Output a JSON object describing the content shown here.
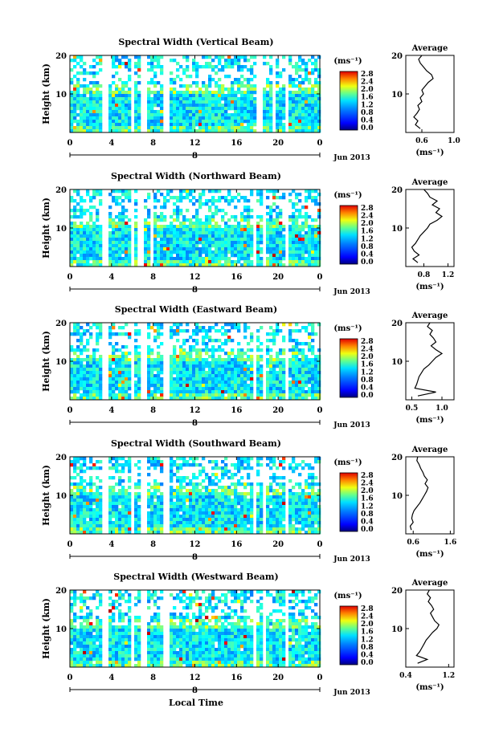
{
  "figure": {
    "xlabel": "Local Time",
    "colorbar_unit": "(ms⁻¹)",
    "colorbar_ticks": [
      "2.8",
      "2.4",
      "2.0",
      "1.6",
      "1.2",
      "0.8",
      "0.4",
      "0.0"
    ],
    "ylabel": "Height (km)",
    "time_ticks": [
      "0",
      "4",
      "8",
      "12",
      "16",
      "20",
      "0"
    ],
    "day_label": "8",
    "month_label": "Jun 2013",
    "avg_title": "Average",
    "avg_xlabel": "(ms⁻¹)"
  },
  "chart_data": [
    {
      "type": "heatmap",
      "title": "Spectral Width (Vertical Beam)",
      "x_range_hours": [
        0,
        24
      ],
      "ylim": [
        0,
        20
      ],
      "yticks": [
        "20",
        "10"
      ],
      "color_range": [
        0,
        2.8
      ],
      "gaps_hours": [
        [
          3.0,
          3.4
        ],
        [
          5.7,
          6.1
        ],
        [
          6.6,
          7.1
        ],
        [
          8.9,
          9.3
        ],
        [
          17.9,
          18.3
        ],
        [
          19.3,
          19.7
        ],
        [
          20.4,
          20.8
        ]
      ],
      "average_profile": {
        "title": "Average",
        "xlim": [
          0.4,
          1.0
        ],
        "xticks": [
          "0.6",
          "1.0"
        ],
        "ylim": [
          0,
          20
        ],
        "yticks": [
          "20",
          "10"
        ],
        "height_km": [
          1,
          2,
          3,
          4,
          5,
          6,
          7,
          8,
          9,
          10,
          11,
          12,
          13,
          14,
          15,
          16,
          17,
          18,
          19,
          20
        ],
        "values": [
          0.58,
          0.52,
          0.55,
          0.5,
          0.54,
          0.57,
          0.55,
          0.6,
          0.58,
          0.62,
          0.6,
          0.64,
          0.68,
          0.74,
          0.72,
          0.66,
          0.62,
          0.58,
          0.56,
          0.6
        ]
      }
    },
    {
      "type": "heatmap",
      "title": "Spectral Width (Northward Beam)",
      "x_range_hours": [
        0,
        24
      ],
      "ylim": [
        0,
        20
      ],
      "yticks": [
        "20",
        "10"
      ],
      "color_range": [
        0,
        2.8
      ],
      "gaps_hours": [
        [
          3.0,
          3.4
        ],
        [
          5.6,
          6.0
        ],
        [
          6.4,
          7.0
        ],
        [
          7.6,
          7.9
        ],
        [
          17.5,
          17.9
        ],
        [
          18.4,
          18.8
        ],
        [
          20.4,
          20.8
        ]
      ],
      "average_profile": {
        "title": "Average",
        "xlim": [
          0.5,
          1.3
        ],
        "xticks": [
          "0.8",
          "1.2"
        ],
        "ylim": [
          0,
          20
        ],
        "yticks": [
          "20",
          "10"
        ],
        "height_km": [
          1,
          2,
          3,
          4,
          5,
          6,
          7,
          8,
          9,
          10,
          11,
          12,
          13,
          14,
          15,
          16,
          17,
          18,
          19,
          20
        ],
        "values": [
          0.7,
          0.62,
          0.72,
          0.64,
          0.6,
          0.66,
          0.7,
          0.74,
          0.8,
          0.86,
          0.9,
          1.02,
          1.1,
          1.0,
          1.06,
          0.94,
          1.02,
          0.9,
          0.86,
          0.8
        ]
      }
    },
    {
      "type": "heatmap",
      "title": "Spectral Width (Eastward Beam)",
      "x_range_hours": [
        0,
        24
      ],
      "ylim": [
        0,
        20
      ],
      "yticks": [
        "20",
        "10"
      ],
      "color_range": [
        0,
        2.8
      ],
      "gaps_hours": [
        [
          3.0,
          3.4
        ],
        [
          5.6,
          6.0
        ],
        [
          6.6,
          7.1
        ],
        [
          8.9,
          9.3
        ],
        [
          17.5,
          17.9
        ],
        [
          18.4,
          18.8
        ],
        [
          20.4,
          20.8
        ]
      ],
      "average_profile": {
        "title": "Average",
        "xlim": [
          0.4,
          1.2
        ],
        "xticks": [
          "0.5",
          "1.0"
        ],
        "ylim": [
          0,
          20
        ],
        "yticks": [
          "20",
          "10"
        ],
        "height_km": [
          1,
          2,
          3,
          4,
          5,
          6,
          7,
          8,
          9,
          10,
          11,
          12,
          13,
          14,
          15,
          16,
          17,
          18,
          19,
          20
        ],
        "values": [
          0.6,
          0.9,
          0.55,
          0.58,
          0.6,
          0.62,
          0.66,
          0.7,
          0.78,
          0.84,
          0.9,
          1.0,
          0.9,
          0.82,
          0.9,
          0.86,
          0.8,
          0.84,
          0.76,
          0.8
        ]
      }
    },
    {
      "type": "heatmap",
      "title": "Spectral Width (Southward Beam)",
      "x_range_hours": [
        0,
        24
      ],
      "ylim": [
        0,
        20
      ],
      "yticks": [
        "20",
        "10"
      ],
      "color_range": [
        0,
        2.8
      ],
      "gaps_hours": [
        [
          3.0,
          3.4
        ],
        [
          5.6,
          6.0
        ],
        [
          6.6,
          7.1
        ],
        [
          8.9,
          9.3
        ],
        [
          17.5,
          17.9
        ],
        [
          18.4,
          18.8
        ],
        [
          20.4,
          20.8
        ]
      ],
      "average_profile": {
        "title": "Average",
        "xlim": [
          0.4,
          1.7
        ],
        "xticks": [
          "0.6",
          "1.6"
        ],
        "ylim": [
          0,
          20
        ],
        "yticks": [
          "20",
          "10"
        ],
        "height_km": [
          1,
          2,
          3,
          4,
          5,
          6,
          7,
          8,
          9,
          10,
          11,
          12,
          13,
          14,
          15,
          16,
          17,
          18,
          19,
          20
        ],
        "values": [
          0.55,
          0.52,
          0.6,
          0.56,
          0.58,
          0.62,
          0.7,
          0.78,
          0.84,
          0.9,
          0.96,
          1.0,
          0.92,
          0.98,
          0.9,
          0.86,
          0.8,
          0.76,
          0.7,
          0.72
        ]
      }
    },
    {
      "type": "heatmap",
      "title": "Spectral Width (Westward Beam)",
      "x_range_hours": [
        0,
        24
      ],
      "ylim": [
        0,
        20
      ],
      "yticks": [
        "20",
        "10"
      ],
      "color_range": [
        0,
        2.8
      ],
      "gaps_hours": [
        [
          3.0,
          3.4
        ],
        [
          5.6,
          6.0
        ],
        [
          6.6,
          7.1
        ],
        [
          8.9,
          9.3
        ],
        [
          17.5,
          17.9
        ],
        [
          18.4,
          18.8
        ],
        [
          20.4,
          20.8
        ]
      ],
      "average_profile": {
        "title": "Average",
        "xlim": [
          0.4,
          1.3
        ],
        "xticks": [
          "0.4",
          "1.2"
        ],
        "ylim": [
          0,
          20
        ],
        "yticks": [
          "20",
          "10"
        ],
        "height_km": [
          1,
          2,
          3,
          4,
          5,
          6,
          7,
          8,
          9,
          10,
          11,
          12,
          13,
          14,
          15,
          16,
          17,
          18,
          19,
          20
        ],
        "values": [
          0.62,
          0.8,
          0.6,
          0.66,
          0.7,
          0.74,
          0.78,
          0.84,
          0.9,
          0.98,
          1.02,
          0.94,
          0.9,
          0.86,
          0.92,
          0.88,
          0.82,
          0.86,
          0.8,
          0.84
        ]
      }
    }
  ]
}
